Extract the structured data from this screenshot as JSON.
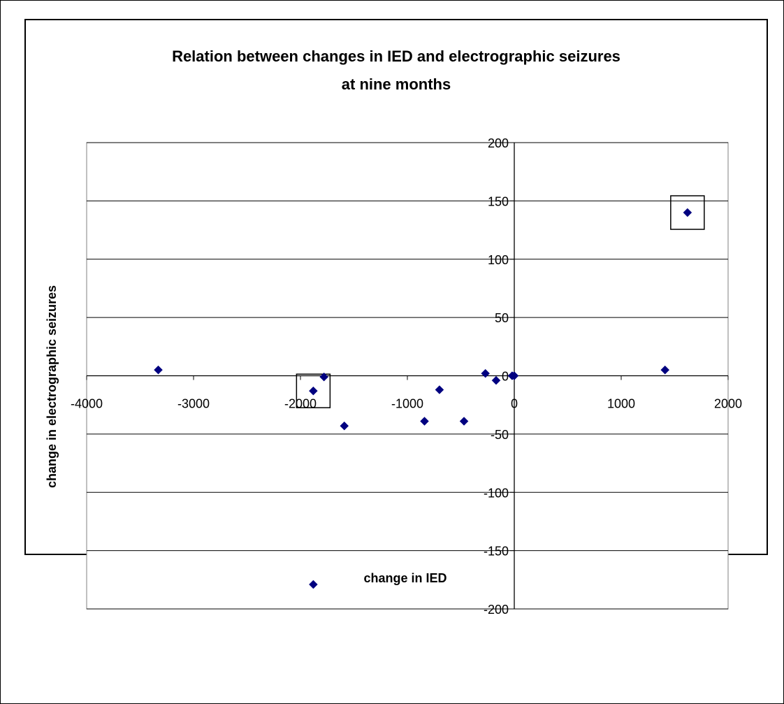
{
  "chart_data": {
    "type": "scatter",
    "title": [
      "Relation between changes in IED and electrographic seizures",
      "at nine months"
    ],
    "xlabel": "change in IED",
    "ylabel": "change in electrographic seizures",
    "xlim": [
      -4000,
      2000
    ],
    "ylim": [
      -200,
      200
    ],
    "xticks": [
      -4000,
      -3000,
      -2000,
      -1000,
      0,
      1000,
      2000
    ],
    "yticks": [
      -200,
      -150,
      -100,
      -50,
      0,
      50,
      100,
      150,
      200
    ],
    "grid": {
      "horizontal": true,
      "vertical": false
    },
    "marker": {
      "shape": "diamond",
      "color": "#000080"
    },
    "points": [
      {
        "x": -3330,
        "y": 5
      },
      {
        "x": -1880,
        "y": -13
      },
      {
        "x": -1780,
        "y": -1
      },
      {
        "x": -1590,
        "y": -43
      },
      {
        "x": -1880,
        "y": -179
      },
      {
        "x": -840,
        "y": -39
      },
      {
        "x": -700,
        "y": -12
      },
      {
        "x": -470,
        "y": -39
      },
      {
        "x": -270,
        "y": 2
      },
      {
        "x": -170,
        "y": -4
      },
      {
        "x": -20,
        "y": 0
      },
      {
        "x": 0,
        "y": 0
      },
      {
        "x": 1410,
        "y": 5
      },
      {
        "x": 1620,
        "y": 140
      }
    ],
    "highlighted_points": [
      {
        "x": -1880,
        "y": -13
      },
      {
        "x": 1620,
        "y": 140
      }
    ]
  }
}
